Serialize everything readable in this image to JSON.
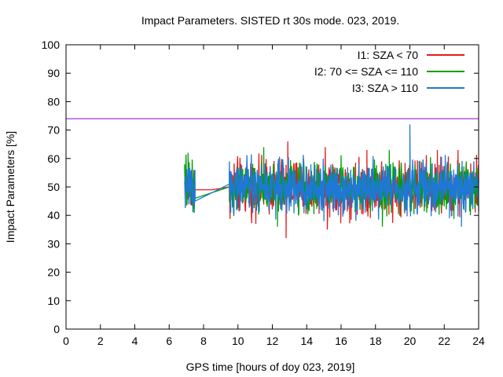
{
  "chart_data": {
    "type": "line",
    "title": "Impact Parameters. SISTED rt 30s mode. 023, 2019.",
    "xlabel": "GPS time [hours of doy 023, 2019]",
    "ylabel": "Impact Parameters [%]",
    "xlim": [
      0,
      24
    ],
    "ylim": [
      0,
      100
    ],
    "x_ticks": [
      "0",
      "2",
      "4",
      "6",
      "8",
      "10",
      "12",
      "14",
      "16",
      "18",
      "20",
      "22",
      "24"
    ],
    "y_ticks": [
      "0",
      "10",
      "20",
      "30",
      "40",
      "50",
      "60",
      "70",
      "80",
      "90",
      "100"
    ],
    "reference_line": {
      "y": 74,
      "color": "#9400d3"
    },
    "series": [
      {
        "name": "I1: SZA < 70",
        "color": "#e41a1c",
        "segments": [
          {
            "x_start": 6.9,
            "x_end": 7.5,
            "center": 50,
            "spread": 8
          },
          {
            "x_start": 7.5,
            "x_end": 8.5,
            "flat": 49
          },
          {
            "x_start": 8.5,
            "x_end": 9.5,
            "ramp_from": 49,
            "ramp_to": 50
          },
          {
            "x_start": 9.5,
            "x_end": 24.0,
            "center": 50,
            "spread": 9
          }
        ],
        "extremes": [
          {
            "x": 12.8,
            "y": 32
          },
          {
            "x": 12.9,
            "y": 66
          },
          {
            "x": 15.2,
            "y": 35
          },
          {
            "x": 17.5,
            "y": 63
          },
          {
            "x": 21.6,
            "y": 63
          },
          {
            "x": 22.8,
            "y": 63
          }
        ]
      },
      {
        "name": "I2: 70 <= SZA <= 110",
        "color": "#00a000",
        "segments": [
          {
            "x_start": 6.9,
            "x_end": 7.5,
            "center": 51,
            "spread": 9
          },
          {
            "x_start": 7.5,
            "x_end": 9.5,
            "ramp_from": 46,
            "ramp_to": 50
          },
          {
            "x_start": 9.5,
            "x_end": 24.0,
            "center": 50,
            "spread": 8
          }
        ],
        "extremes": [
          {
            "x": 11.5,
            "y": 64
          },
          {
            "x": 12.3,
            "y": 36
          },
          {
            "x": 18.4,
            "y": 36
          },
          {
            "x": 18.8,
            "y": 63
          },
          {
            "x": 7.1,
            "y": 62
          }
        ]
      },
      {
        "name": "I3: SZA > 110",
        "color": "#1f78d8",
        "segments": [
          {
            "x_start": 6.9,
            "x_end": 7.5,
            "center": 50,
            "spread": 7
          },
          {
            "x_start": 7.5,
            "x_end": 9.5,
            "ramp_from": 45,
            "ramp_to": 51
          },
          {
            "x_start": 9.5,
            "x_end": 24.0,
            "center": 50,
            "spread": 8.5
          }
        ],
        "extremes": [
          {
            "x": 20.0,
            "y": 72
          },
          {
            "x": 23.0,
            "y": 36
          },
          {
            "x": 15.0,
            "y": 38
          },
          {
            "x": 22.3,
            "y": 39
          }
        ]
      }
    ],
    "legend_position": "top-right",
    "grid": false
  }
}
